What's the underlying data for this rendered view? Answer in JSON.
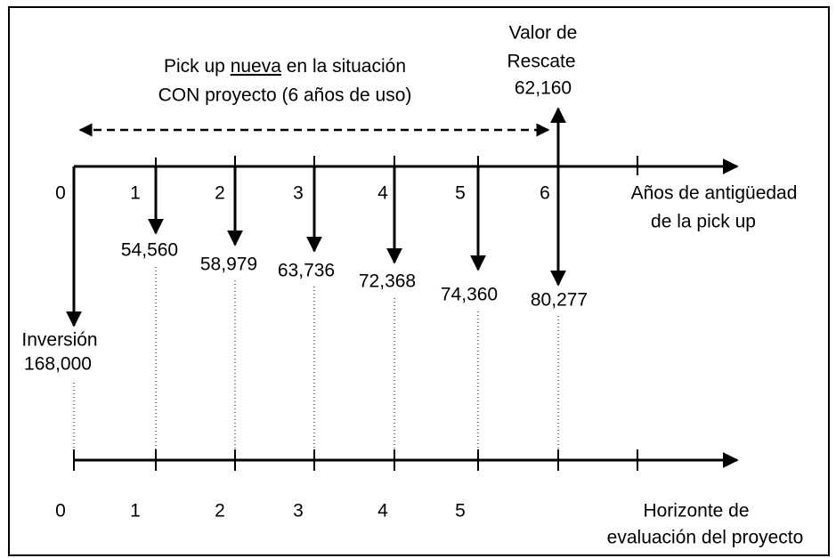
{
  "title": {
    "before": "Pick up",
    "underlined": "nueva",
    "after": "en la situación",
    "line2": "CON proyecto (6 años de uso)"
  },
  "rescue": {
    "line1": "Valor de",
    "line2": "Rescate",
    "amount": "62,160"
  },
  "investment": {
    "label": "Inversión",
    "amount": "168,000"
  },
  "top_axis": {
    "ticks": [
      "0",
      "1",
      "2",
      "3",
      "4",
      "5",
      "6"
    ],
    "label_line1": "Años de antigüedad",
    "label_line2": "de la pick up"
  },
  "costs": [
    "54,560",
    "58,979",
    "63,736",
    "72,368",
    "74,360",
    "80,277"
  ],
  "bottom_axis": {
    "ticks": [
      "0",
      "1",
      "2",
      "3",
      "4",
      "5"
    ],
    "label_line1": "Horizonte de",
    "label_line2": "evaluación del proyecto"
  }
}
